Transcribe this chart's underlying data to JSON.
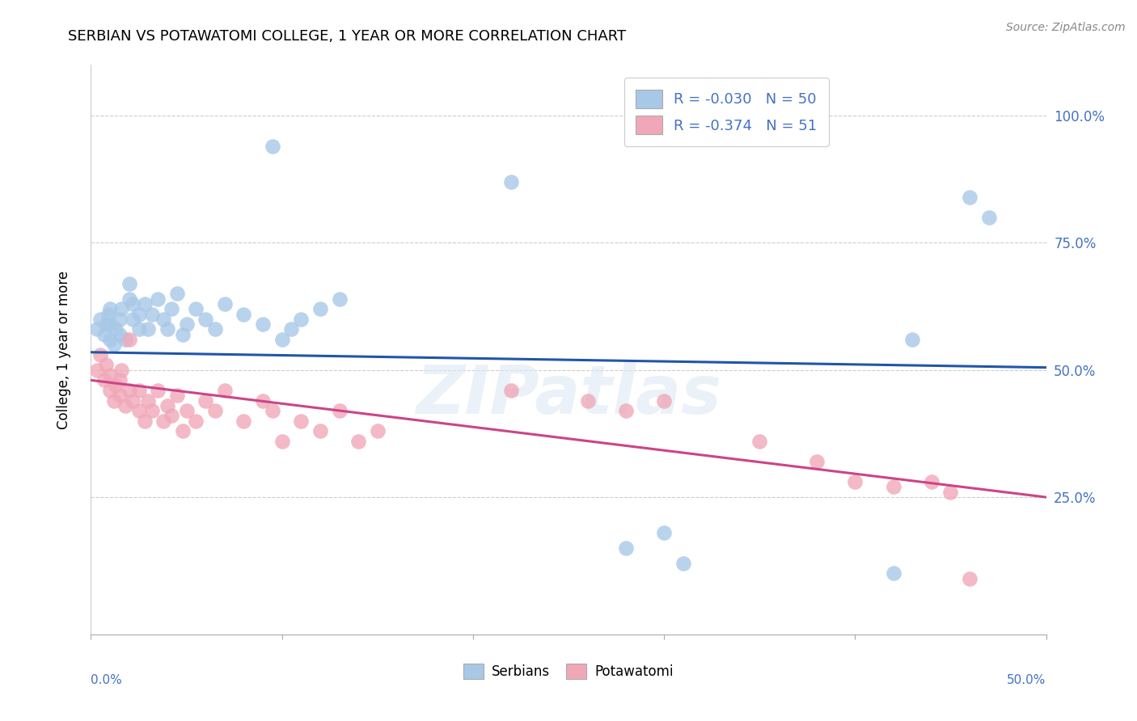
{
  "title": "SERBIAN VS POTAWATOMI COLLEGE, 1 YEAR OR MORE CORRELATION CHART",
  "source": "Source: ZipAtlas.com",
  "ylabel": "College, 1 year or more",
  "xlim": [
    0.0,
    0.5
  ],
  "ylim": [
    -0.02,
    1.1
  ],
  "legend_r_serbian": "-0.030",
  "legend_n_serbian": "50",
  "legend_r_potawatomi": "-0.374",
  "legend_n_potawatomi": "51",
  "serbian_color": "#a8c8e8",
  "potawatomi_color": "#f0a8b8",
  "trend_serbian_color": "#2255aa",
  "trend_potawatomi_color": "#cc4488",
  "watermark": "ZIPatlas",
  "serbian_x": [
    0.003,
    0.005,
    0.007,
    0.008,
    0.009,
    0.01,
    0.01,
    0.01,
    0.012,
    0.013,
    0.015,
    0.015,
    0.016,
    0.018,
    0.02,
    0.02,
    0.022,
    0.022,
    0.025,
    0.025,
    0.028,
    0.03,
    0.032,
    0.035,
    0.038,
    0.04,
    0.042,
    0.045,
    0.048,
    0.05,
    0.055,
    0.06,
    0.065,
    0.07,
    0.08,
    0.09,
    0.095,
    0.1,
    0.105,
    0.11,
    0.12,
    0.13,
    0.22,
    0.28,
    0.3,
    0.31,
    0.42,
    0.43,
    0.46,
    0.47
  ],
  "serbian_y": [
    0.58,
    0.6,
    0.57,
    0.59,
    0.61,
    0.56,
    0.59,
    0.62,
    0.55,
    0.58,
    0.57,
    0.6,
    0.62,
    0.56,
    0.64,
    0.67,
    0.6,
    0.63,
    0.58,
    0.61,
    0.63,
    0.58,
    0.61,
    0.64,
    0.6,
    0.58,
    0.62,
    0.65,
    0.57,
    0.59,
    0.62,
    0.6,
    0.58,
    0.63,
    0.61,
    0.59,
    0.94,
    0.56,
    0.58,
    0.6,
    0.62,
    0.64,
    0.87,
    0.15,
    0.18,
    0.12,
    0.1,
    0.56,
    0.84,
    0.8
  ],
  "potawatomi_x": [
    0.003,
    0.005,
    0.007,
    0.008,
    0.01,
    0.01,
    0.012,
    0.013,
    0.015,
    0.015,
    0.016,
    0.018,
    0.02,
    0.02,
    0.022,
    0.025,
    0.025,
    0.028,
    0.03,
    0.032,
    0.035,
    0.038,
    0.04,
    0.042,
    0.045,
    0.048,
    0.05,
    0.055,
    0.06,
    0.065,
    0.07,
    0.08,
    0.09,
    0.095,
    0.1,
    0.11,
    0.12,
    0.13,
    0.14,
    0.15,
    0.22,
    0.26,
    0.28,
    0.3,
    0.35,
    0.38,
    0.4,
    0.42,
    0.44,
    0.45,
    0.46
  ],
  "potawatomi_y": [
    0.5,
    0.53,
    0.48,
    0.51,
    0.46,
    0.49,
    0.44,
    0.47,
    0.45,
    0.48,
    0.5,
    0.43,
    0.46,
    0.56,
    0.44,
    0.42,
    0.46,
    0.4,
    0.44,
    0.42,
    0.46,
    0.4,
    0.43,
    0.41,
    0.45,
    0.38,
    0.42,
    0.4,
    0.44,
    0.42,
    0.46,
    0.4,
    0.44,
    0.42,
    0.36,
    0.4,
    0.38,
    0.42,
    0.36,
    0.38,
    0.46,
    0.44,
    0.42,
    0.44,
    0.36,
    0.32,
    0.28,
    0.27,
    0.28,
    0.26,
    0.09
  ]
}
